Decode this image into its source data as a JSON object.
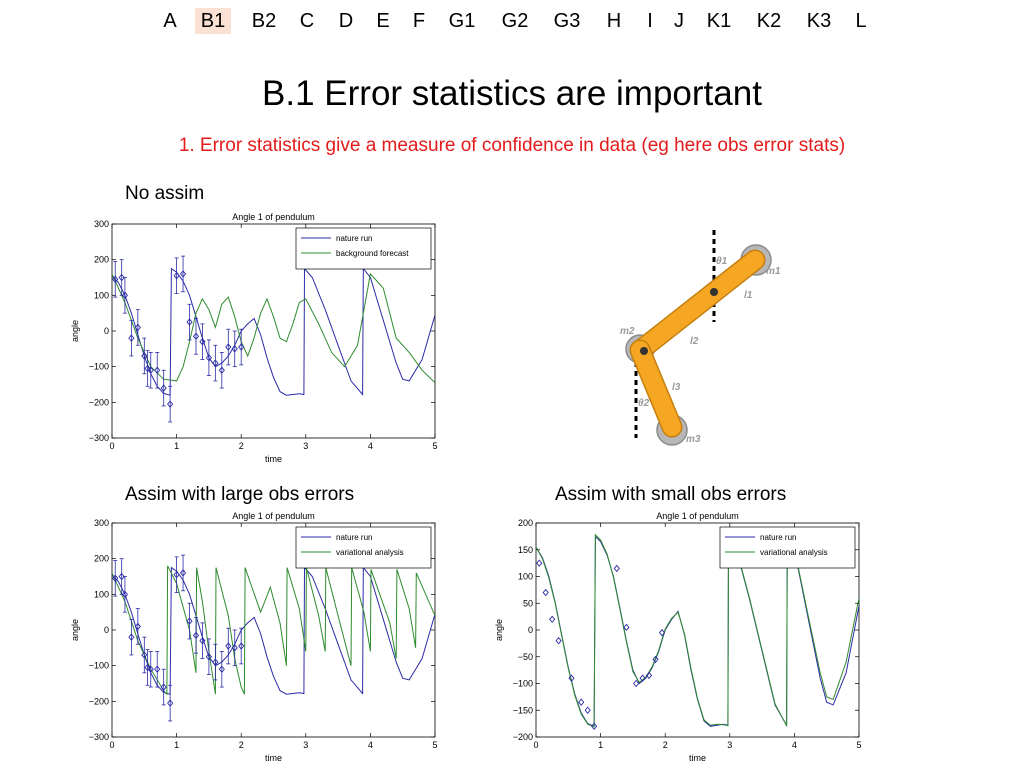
{
  "nav": {
    "items": [
      "A",
      "B1",
      "B2",
      "C",
      "D",
      "E",
      "F",
      "G1",
      "G2",
      "G3",
      "H",
      "I",
      "J",
      "K1",
      "K2",
      "K3",
      "L"
    ],
    "active": "B1"
  },
  "slide": {
    "title": "B.1 Error statistics are important",
    "subtitle": "1. Error statistics give a measure of confidence in data (eg here obs error stats)",
    "captions": {
      "no_assim": "No assim",
      "large_obs": "Assim with large obs errors",
      "small_obs": "Assim with small obs errors"
    }
  },
  "colors": {
    "nature_run": "#2b2ba8",
    "model": "#2e8b2e",
    "obs": "#2b2ba8",
    "subtitle": "#e31b1b",
    "pendulum_arm": "#f5a623",
    "nav_active_bg": "#fbe1d4"
  },
  "diagram": {
    "labels": [
      "θ1",
      "m1",
      "l1",
      "l2",
      "m2",
      "l3",
      "θ2",
      "m3"
    ]
  },
  "chart_data": [
    {
      "type": "line",
      "id": "no_assim",
      "title": "Angle 1 of pendulum",
      "xlabel": "time",
      "ylabel": "angle",
      "xlim": [
        0,
        5
      ],
      "ylim": [
        -300,
        300
      ],
      "xticks": [
        0,
        1,
        2,
        3,
        4,
        5
      ],
      "yticks": [
        -300,
        -200,
        -100,
        0,
        100,
        200,
        300
      ],
      "legend": "top-right",
      "grid": false,
      "series": [
        {
          "name": "nature run",
          "color": "nature_run",
          "style": "line",
          "x": [
            0,
            0.1,
            0.2,
            0.3,
            0.4,
            0.5,
            0.6,
            0.7,
            0.8,
            0.9,
            0.92,
            1.0,
            1.1,
            1.2,
            1.3,
            1.4,
            1.5,
            1.6,
            1.7,
            1.8,
            1.9,
            2.0,
            2.1,
            2.2,
            2.3,
            2.4,
            2.5,
            2.6,
            2.7,
            2.8,
            2.9,
            2.97,
            2.98,
            3.1,
            3.3,
            3.5,
            3.7,
            3.88,
            3.89,
            4.0,
            4.2,
            4.4,
            4.5,
            4.6,
            4.8,
            5.0
          ],
          "y": [
            155,
            135,
            100,
            50,
            -10,
            -70,
            -120,
            -155,
            -175,
            -180,
            175,
            165,
            140,
            100,
            40,
            -20,
            -75,
            -100,
            -90,
            -70,
            -40,
            0,
            20,
            35,
            -10,
            -75,
            -130,
            -170,
            -180,
            -178,
            -176,
            -178,
            175,
            150,
            60,
            -40,
            -140,
            -178,
            175,
            150,
            30,
            -90,
            -135,
            -140,
            -80,
            45
          ]
        },
        {
          "name": "background forecast",
          "color": "model",
          "style": "line",
          "x": [
            0,
            0.2,
            0.4,
            0.6,
            0.8,
            1.0,
            1.1,
            1.2,
            1.3,
            1.4,
            1.5,
            1.6,
            1.7,
            1.8,
            1.9,
            2.0,
            2.1,
            2.2,
            2.3,
            2.4,
            2.5,
            2.6,
            2.7,
            2.8,
            2.9,
            3.0,
            3.2,
            3.4,
            3.6,
            3.8,
            4.0,
            4.2,
            4.4,
            4.6,
            4.8,
            5.0
          ],
          "y": [
            160,
            80,
            -20,
            -100,
            -135,
            -140,
            -100,
            -30,
            50,
            90,
            60,
            10,
            75,
            95,
            40,
            -30,
            -70,
            -20,
            50,
            90,
            40,
            -20,
            -30,
            20,
            80,
            90,
            20,
            -60,
            -100,
            -40,
            160,
            120,
            -20,
            -60,
            -110,
            -145
          ]
        },
        {
          "name": "",
          "color": "obs",
          "style": "obs",
          "x": [
            0.05,
            0.15,
            0.2,
            0.3,
            0.4,
            0.5,
            0.55,
            0.6,
            0.7,
            0.8,
            0.9,
            1.0,
            1.1,
            1.2,
            1.3,
            1.4,
            1.5,
            1.6,
            1.7,
            1.8,
            1.9,
            2.0
          ],
          "y": [
            145,
            150,
            100,
            -20,
            10,
            -70,
            -105,
            -110,
            -110,
            -160,
            -205,
            155,
            160,
            25,
            -15,
            -30,
            -75,
            -90,
            -110,
            -45,
            -50,
            -45
          ],
          "err": 50
        }
      ]
    },
    {
      "type": "line",
      "id": "large_obs",
      "title": "Angle 1 of pendulum",
      "xlabel": "time",
      "ylabel": "angle",
      "xlim": [
        0,
        5
      ],
      "ylim": [
        -300,
        300
      ],
      "xticks": [
        0,
        1,
        2,
        3,
        4,
        5
      ],
      "yticks": [
        -300,
        -200,
        -100,
        0,
        100,
        200,
        300
      ],
      "legend": "top-right",
      "grid": false,
      "series": [
        {
          "name": "nature run",
          "color": "nature_run",
          "style": "line",
          "x": [
            0,
            0.1,
            0.2,
            0.3,
            0.4,
            0.5,
            0.6,
            0.7,
            0.8,
            0.9,
            0.92,
            1.0,
            1.1,
            1.2,
            1.3,
            1.4,
            1.5,
            1.6,
            1.7,
            1.8,
            1.9,
            2.0,
            2.1,
            2.2,
            2.3,
            2.4,
            2.5,
            2.6,
            2.7,
            2.8,
            2.9,
            2.97,
            2.98,
            3.1,
            3.3,
            3.5,
            3.7,
            3.88,
            3.89,
            4.0,
            4.2,
            4.4,
            4.5,
            4.6,
            4.8,
            5.0
          ],
          "y": [
            155,
            135,
            100,
            50,
            -10,
            -70,
            -120,
            -155,
            -175,
            -180,
            175,
            165,
            140,
            100,
            40,
            -20,
            -75,
            -100,
            -90,
            -70,
            -40,
            0,
            20,
            35,
            -10,
            -75,
            -130,
            -170,
            -180,
            -178,
            -176,
            -178,
            175,
            150,
            60,
            -40,
            -140,
            -178,
            175,
            150,
            30,
            -90,
            -135,
            -140,
            -80,
            45
          ]
        },
        {
          "name": "variational analysis",
          "color": "model",
          "style": "line",
          "x": [
            0,
            0.2,
            0.4,
            0.6,
            0.8,
            0.85,
            0.86,
            1.0,
            1.2,
            1.3,
            1.31,
            1.4,
            1.5,
            1.6,
            1.61,
            1.8,
            1.9,
            2.0,
            2.05,
            2.06,
            2.3,
            2.45,
            2.6,
            2.7,
            2.71,
            2.9,
            3.0,
            3.01,
            3.2,
            3.3,
            3.31,
            3.5,
            3.7,
            3.71,
            3.9,
            4.0,
            4.01,
            4.3,
            4.4,
            4.41,
            4.6,
            4.7,
            4.71,
            5.0
          ],
          "y": [
            160,
            80,
            -30,
            -110,
            -170,
            -180,
            180,
            130,
            0,
            -120,
            175,
            80,
            -60,
            -180,
            175,
            40,
            -80,
            -160,
            -180,
            175,
            50,
            120,
            20,
            -100,
            175,
            60,
            -60,
            175,
            40,
            -60,
            175,
            40,
            -100,
            175,
            50,
            -60,
            170,
            20,
            -80,
            170,
            60,
            -50,
            160,
            40
          ]
        },
        {
          "name": "",
          "color": "obs",
          "style": "obs",
          "x": [
            0.05,
            0.15,
            0.2,
            0.3,
            0.4,
            0.5,
            0.55,
            0.6,
            0.7,
            0.8,
            0.9,
            1.0,
            1.1,
            1.2,
            1.3,
            1.4,
            1.5,
            1.6,
            1.7,
            1.8,
            1.9,
            2.0
          ],
          "y": [
            145,
            150,
            100,
            -20,
            10,
            -70,
            -105,
            -110,
            -110,
            -160,
            -205,
            155,
            160,
            25,
            -15,
            -30,
            -75,
            -90,
            -110,
            -45,
            -50,
            -45
          ],
          "err": 50
        }
      ]
    },
    {
      "type": "line",
      "id": "small_obs",
      "title": "Angle 1 of pendulum",
      "xlabel": "time",
      "ylabel": "angle",
      "xlim": [
        0,
        5
      ],
      "ylim": [
        -200,
        200
      ],
      "xticks": [
        0,
        1,
        2,
        3,
        4,
        5
      ],
      "yticks": [
        -200,
        -150,
        -100,
        -50,
        0,
        50,
        100,
        150,
        200
      ],
      "legend": "top-right",
      "grid": false,
      "series": [
        {
          "name": "nature run",
          "color": "nature_run",
          "style": "line",
          "x": [
            0,
            0.1,
            0.2,
            0.3,
            0.4,
            0.5,
            0.6,
            0.7,
            0.8,
            0.9,
            0.92,
            1.0,
            1.1,
            1.2,
            1.3,
            1.4,
            1.5,
            1.6,
            1.7,
            1.8,
            1.9,
            2.0,
            2.1,
            2.2,
            2.3,
            2.4,
            2.5,
            2.6,
            2.7,
            2.8,
            2.9,
            2.97,
            2.98,
            3.1,
            3.3,
            3.5,
            3.7,
            3.88,
            3.89,
            4.0,
            4.2,
            4.4,
            4.5,
            4.6,
            4.8,
            5.0
          ],
          "y": [
            155,
            135,
            100,
            50,
            -10,
            -70,
            -120,
            -155,
            -175,
            -180,
            175,
            165,
            140,
            100,
            40,
            -20,
            -75,
            -100,
            -90,
            -70,
            -40,
            0,
            20,
            35,
            -10,
            -75,
            -130,
            -170,
            -180,
            -178,
            -176,
            -178,
            175,
            150,
            60,
            -40,
            -140,
            -178,
            175,
            150,
            30,
            -90,
            -135,
            -140,
            -80,
            45
          ]
        },
        {
          "name": "variational analysis",
          "color": "model",
          "style": "line",
          "x": [
            0,
            0.1,
            0.2,
            0.3,
            0.4,
            0.5,
            0.6,
            0.7,
            0.8,
            0.9,
            0.92,
            1.0,
            1.1,
            1.2,
            1.3,
            1.4,
            1.5,
            1.6,
            1.7,
            1.8,
            1.9,
            2.0,
            2.1,
            2.2,
            2.3,
            2.4,
            2.5,
            2.6,
            2.7,
            2.8,
            2.9,
            2.97,
            2.98,
            3.1,
            3.3,
            3.5,
            3.7,
            3.88,
            3.89,
            4.0,
            4.2,
            4.4,
            4.5,
            4.6,
            4.8,
            5.0
          ],
          "y": [
            155,
            133,
            97,
            48,
            -12,
            -72,
            -122,
            -157,
            -176,
            -181,
            178,
            168,
            142,
            98,
            38,
            -22,
            -78,
            -98,
            -88,
            -68,
            -38,
            2,
            22,
            33,
            -8,
            -72,
            -128,
            -168,
            -178,
            -176,
            -177,
            -179,
            178,
            152,
            62,
            -38,
            -138,
            -179,
            176,
            152,
            35,
            -80,
            -125,
            -130,
            -60,
            60
          ]
        },
        {
          "name": "",
          "color": "obs",
          "style": "obs",
          "x": [
            0.05,
            0.15,
            0.25,
            0.35,
            0.55,
            0.7,
            0.8,
            0.9,
            1.25,
            1.4,
            1.55,
            1.65,
            1.75,
            1.85,
            1.95
          ],
          "y": [
            125,
            70,
            20,
            -20,
            -90,
            -135,
            -150,
            -180,
            115,
            5,
            -100,
            -90,
            -85,
            -55,
            -5
          ],
          "err": 5
        }
      ]
    }
  ]
}
